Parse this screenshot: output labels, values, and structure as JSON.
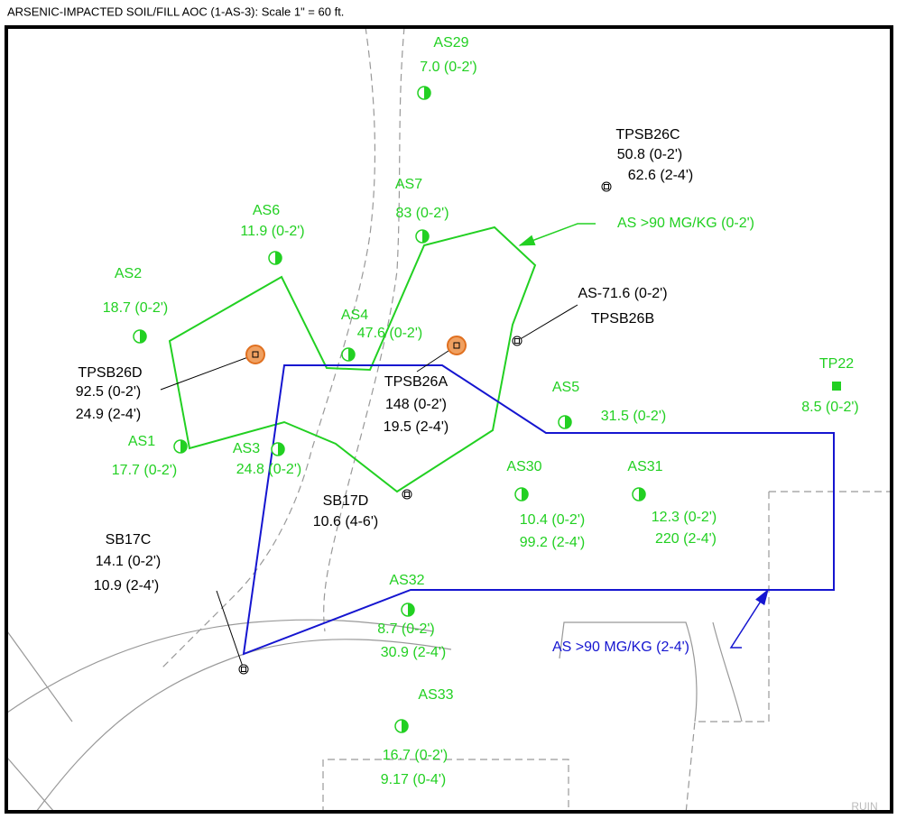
{
  "title": "ARSENIC-IMPACTED SOIL/FILL AOC (1-AS-3): Scale 1\" = 60 ft.",
  "legend": {
    "shallow": "AS >90 MG/KG (0-2')",
    "deep": "AS >90 MG/KG (2-4')"
  },
  "corner_label": "RUIN",
  "samples": [
    {
      "id": "AS29",
      "results": [
        "7.0 (0-2')"
      ]
    },
    {
      "id": "TPSB26C",
      "results": [
        "50.8 (0-2')",
        "62.6 (2-4')"
      ]
    },
    {
      "id": "AS7",
      "results": [
        "83 (0-2')"
      ]
    },
    {
      "id": "AS6",
      "results": [
        "11.9 (0-2')"
      ]
    },
    {
      "id": "AS2",
      "results": [
        "18.7 (0-2')"
      ]
    },
    {
      "id": "AS4",
      "results": [
        "47.6 (0-2')"
      ]
    },
    {
      "id": "TPSB26B",
      "results": [
        "AS-71.6 (0-2')"
      ]
    },
    {
      "id": "TPSB26D",
      "results": [
        "92.5 (0-2')",
        "24.9 (2-4')"
      ]
    },
    {
      "id": "TPSB26A",
      "results": [
        "148 (0-2')",
        "19.5 (2-4')"
      ]
    },
    {
      "id": "AS5",
      "results": [
        "31.5 (0-2')"
      ]
    },
    {
      "id": "TP22",
      "results": [
        "8.5 (0-2')"
      ]
    },
    {
      "id": "AS1",
      "results": [
        "17.7 (0-2')"
      ]
    },
    {
      "id": "AS3",
      "results": [
        "24.8 (0-2')"
      ]
    },
    {
      "id": "AS30",
      "results": [
        "10.4 (0-2')",
        "99.2 (2-4')"
      ]
    },
    {
      "id": "AS31",
      "results": [
        "12.3 (0-2')",
        "220 (2-4')"
      ]
    },
    {
      "id": "SB17D",
      "results": [
        "10.6 (4-6')"
      ]
    },
    {
      "id": "SB17C",
      "results": [
        "14.1 (0-2')",
        "10.9 (2-4')"
      ]
    },
    {
      "id": "AS32",
      "results": [
        "8.7 (0-2')",
        "30.9 (2-4')"
      ]
    },
    {
      "id": "AS33",
      "results": [
        "16.7 (0-2')",
        "9.17 (0-4')"
      ]
    }
  ]
}
